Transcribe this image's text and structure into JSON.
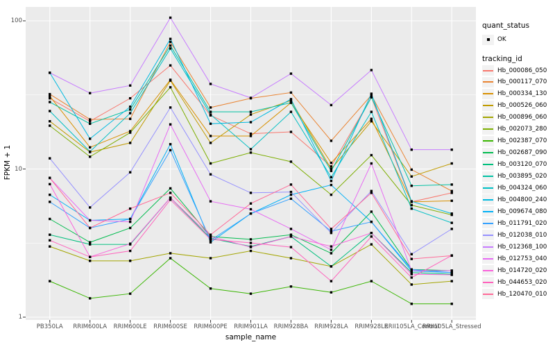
{
  "chart_data": {
    "type": "line",
    "title": "",
    "xlabel": "sample_name",
    "ylabel": "FPKM + 1",
    "y_scale": "log10",
    "ylim": [
      0.96,
      125
    ],
    "y_ticks": [
      1,
      10,
      100
    ],
    "y_tick_labels": [
      "1",
      "10",
      "100"
    ],
    "y_minor_gridlines": [
      3.162,
      31.623
    ],
    "grid": "on",
    "panel_color": "#EBEBEB",
    "grid_color": "#FFFFFF",
    "marker": {
      "shape": "square",
      "color": "#000000"
    },
    "legend_position": "right",
    "categories": [
      "PB350LA",
      "RRIM600LA",
      "RRIM600LE",
      "RRIM600SE",
      "RRIM600PE",
      "RRIM901LA",
      "RRIM928BA",
      "RRIM928LA",
      "RRIM928LE",
      "RRII105LA_Control",
      "RRII105LA_Stressed"
    ],
    "legend": {
      "quant_status_title": "quant_status",
      "quant_status_items": [
        {
          "label": "OK",
          "shape": "square",
          "color": "#000000"
        }
      ],
      "tracking_title": "tracking_id"
    },
    "series": [
      {
        "name": "Hb_000086_050",
        "color": "#F8766D",
        "values": [
          30,
          21,
          30,
          50,
          23,
          17.3,
          17.8,
          10.4,
          30.5,
          6.0,
          6.9
        ]
      },
      {
        "name": "Hb_000117_070",
        "color": "#EA8331",
        "values": [
          32,
          21.6,
          21.8,
          72,
          26,
          30,
          32.8,
          15.5,
          31.5,
          9.9,
          7.1
        ]
      },
      {
        "name": "Hb_000334_130",
        "color": "#D89000",
        "values": [
          31,
          14,
          18,
          40,
          16.7,
          16.7,
          28,
          11,
          21.8,
          6.0,
          6.1
        ]
      },
      {
        "name": "Hb_000526_060",
        "color": "#C09B00",
        "values": [
          21,
          13,
          15,
          39.5,
          15,
          23.3,
          29,
          10,
          21,
          8.9,
          10.9
        ]
      },
      {
        "name": "Hb_000896_060",
        "color": "#A3A500",
        "values": [
          3.0,
          2.4,
          2.4,
          2.7,
          2.5,
          2.8,
          2.5,
          2.2,
          3.1,
          1.66,
          1.75
        ]
      },
      {
        "name": "Hb_002073_280",
        "color": "#7CAE00",
        "values": [
          19.6,
          12.1,
          17.6,
          35.6,
          10.9,
          12.9,
          11.2,
          6.7,
          12.4,
          5.7,
          4.9
        ]
      },
      {
        "name": "Hb_002387_070",
        "color": "#39B600",
        "values": [
          1.75,
          1.34,
          1.44,
          2.5,
          1.56,
          1.44,
          1.61,
          1.47,
          1.75,
          1.23,
          1.23
        ]
      },
      {
        "name": "Hb_002687_090",
        "color": "#00BB4E",
        "values": [
          4.6,
          3.2,
          4.0,
          7.4,
          3.5,
          3.35,
          3.6,
          2.7,
          5.15,
          2.1,
          2.06
        ]
      },
      {
        "name": "Hb_003120_070",
        "color": "#00BF7D",
        "values": [
          3.6,
          3.1,
          3.1,
          6.4,
          3.4,
          3.0,
          3.5,
          2.2,
          3.7,
          2.0,
          1.95
        ]
      },
      {
        "name": "Hb_003895_020",
        "color": "#00C1A3",
        "values": [
          28.3,
          20.2,
          25.2,
          68,
          24.3,
          24.3,
          28,
          9.7,
          30.5,
          7.7,
          7.85
        ]
      },
      {
        "name": "Hb_004324_060",
        "color": "#00BFC4",
        "values": [
          24.6,
          13.1,
          23.8,
          65,
          23.3,
          13.6,
          24.3,
          8.8,
          24.3,
          5.4,
          4.33
        ]
      },
      {
        "name": "Hb_004800_240",
        "color": "#00BAE0",
        "values": [
          44.6,
          16,
          26.3,
          75.5,
          20.2,
          20.7,
          29.6,
          8.3,
          32.2,
          6.05,
          5.0
        ]
      },
      {
        "name": "Hb_009674_080",
        "color": "#00B0F6",
        "values": [
          6.7,
          4.5,
          4.6,
          14.7,
          3.2,
          5.0,
          6.7,
          7.8,
          4.4,
          2.05,
          2.0
        ]
      },
      {
        "name": "Hb_011791_020",
        "color": "#35A2FF",
        "values": [
          6.0,
          4.0,
          4.6,
          13.4,
          3.3,
          5.0,
          6.3,
          3.8,
          4.4,
          2.1,
          2.0
        ]
      },
      {
        "name": "Hb_012038_010",
        "color": "#9590FF",
        "values": [
          11.8,
          5.5,
          9.5,
          26,
          9.2,
          6.9,
          7.0,
          3.7,
          7.1,
          2.66,
          3.94
        ]
      },
      {
        "name": "Hb_012368_100",
        "color": "#C77CFF",
        "values": [
          44.6,
          32.5,
          36.6,
          105,
          37.5,
          30.2,
          44,
          27,
          46.5,
          13.5,
          13.5
        ]
      },
      {
        "name": "Hb_012753_040",
        "color": "#E76BF3",
        "values": [
          8.7,
          4.5,
          4.4,
          20,
          6.05,
          5.35,
          3.94,
          2.85,
          10.9,
          2.06,
          2.06
        ]
      },
      {
        "name": "Hb_014720_020",
        "color": "#FA62DB",
        "values": [
          7.9,
          2.55,
          3.13,
          6.4,
          3.5,
          2.97,
          3.5,
          3.0,
          3.7,
          1.95,
          1.93
        ]
      },
      {
        "name": "Hb_044653_020",
        "color": "#FF62BC",
        "values": [
          3.3,
          2.55,
          2.8,
          6.2,
          3.35,
          3.17,
          2.97,
          1.75,
          3.5,
          1.85,
          2.61
        ]
      },
      {
        "name": "Hb_120470_010",
        "color": "#FF6A98",
        "values": [
          8.7,
          4.0,
          5.4,
          6.9,
          3.6,
          5.85,
          7.85,
          3.94,
          6.9,
          2.47,
          2.6
        ]
      }
    ]
  }
}
